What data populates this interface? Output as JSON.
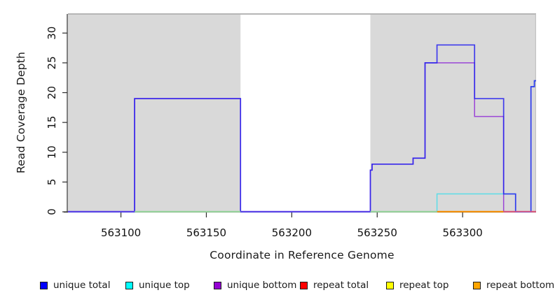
{
  "figure": {
    "x_axis_label": "Coordinate in Reference Genome",
    "y_axis_label": "Read Coverage Depth"
  },
  "legend": {
    "items": [
      {
        "label": "unique total",
        "color": "#0000ff"
      },
      {
        "label": "unique top",
        "color": "#00ffff"
      },
      {
        "label": "unique bottom",
        "color": "#9400d3"
      },
      {
        "label": "repeat total",
        "color": "#ff0000"
      },
      {
        "label": "repeat top",
        "color": "#ffff00"
      },
      {
        "label": "repeat bottom",
        "color": "#ffa500"
      }
    ]
  },
  "chart_data": {
    "type": "line",
    "title": "",
    "xlabel": "Coordinate in Reference Genome",
    "ylabel": "Read Coverage Depth",
    "xlim": [
      563069,
      563343
    ],
    "ylim": [
      0,
      33.2
    ],
    "x_ticks": [
      563100,
      563150,
      563200,
      563250,
      563300
    ],
    "y_ticks": [
      0,
      5,
      10,
      15,
      20,
      25,
      30
    ],
    "grid": false,
    "legend_position": "bottom",
    "plot_background": "#ffffff",
    "shaded_region_color": "#d9d9d9",
    "shaded_regions": [
      {
        "x0": 563069,
        "x1": 563170
      },
      {
        "x0": 563246,
        "x1": 563343
      }
    ],
    "series": [
      {
        "name": "unique total",
        "legend_color": "#0000ff",
        "points": [
          [
            563069,
            0
          ],
          [
            563108,
            0
          ],
          [
            563108,
            19
          ],
          [
            563170,
            19
          ],
          [
            563170,
            0
          ],
          [
            563246,
            0
          ],
          [
            563246,
            7
          ],
          [
            563247,
            7
          ],
          [
            563247,
            8
          ],
          [
            563271,
            8
          ],
          [
            563271,
            9
          ],
          [
            563278,
            9
          ],
          [
            563278,
            25
          ],
          [
            563285,
            25
          ],
          [
            563285,
            28
          ],
          [
            563307,
            28
          ],
          [
            563307,
            19
          ],
          [
            563324,
            19
          ],
          [
            563324,
            3
          ],
          [
            563331,
            3
          ],
          [
            563331,
            0
          ],
          [
            563340,
            0
          ],
          [
            563340,
            21
          ],
          [
            563342,
            21
          ],
          [
            563342,
            22
          ],
          [
            563343,
            22
          ]
        ]
      },
      {
        "name": "unique top",
        "legend_color": "#00ffff",
        "points": [
          [
            563069,
            0
          ],
          [
            563285,
            0
          ],
          [
            563285,
            3
          ],
          [
            563331,
            3
          ],
          [
            563331,
            0
          ],
          [
            563340,
            0
          ],
          [
            563340,
            21
          ],
          [
            563342,
            21
          ],
          [
            563342,
            22
          ],
          [
            563343,
            22
          ]
        ]
      },
      {
        "name": "unique bottom",
        "legend_color": "#9400d3",
        "points": [
          [
            563069,
            0
          ],
          [
            563108,
            0
          ],
          [
            563108,
            19
          ],
          [
            563170,
            19
          ],
          [
            563170,
            0
          ],
          [
            563246,
            0
          ],
          [
            563246,
            7
          ],
          [
            563247,
            7
          ],
          [
            563247,
            8
          ],
          [
            563271,
            8
          ],
          [
            563271,
            9
          ],
          [
            563278,
            9
          ],
          [
            563278,
            25
          ],
          [
            563307,
            25
          ],
          [
            563307,
            16
          ],
          [
            563324,
            16
          ],
          [
            563324,
            0
          ],
          [
            563343,
            0
          ]
        ]
      },
      {
        "name": "repeat total",
        "legend_color": "#ff0000",
        "points": [
          [
            563069,
            0
          ],
          [
            563343,
            0
          ]
        ]
      },
      {
        "name": "repeat top",
        "legend_color": "#ffff00",
        "points": [
          [
            563069,
            0
          ],
          [
            563343,
            0
          ]
        ]
      },
      {
        "name": "repeat bottom",
        "legend_color": "#ffa500",
        "points": [
          [
            563069,
            0
          ],
          [
            563343,
            0
          ]
        ]
      }
    ],
    "baseline_overlap_segments": [
      {
        "x0": 563069,
        "x1": 563108,
        "color": "#5a3ce8"
      },
      {
        "x0": 563108,
        "x1": 563170,
        "color": "#96d89e"
      },
      {
        "x0": 563170,
        "x1": 563246,
        "color": "#5a3ce8"
      },
      {
        "x0": 563246,
        "x1": 563285,
        "color": "#96d89e"
      },
      {
        "x0": 563285,
        "x1": 563324,
        "color": "#ff9100"
      },
      {
        "x0": 563324,
        "x1": 563343,
        "color": "#e0557d"
      }
    ]
  }
}
